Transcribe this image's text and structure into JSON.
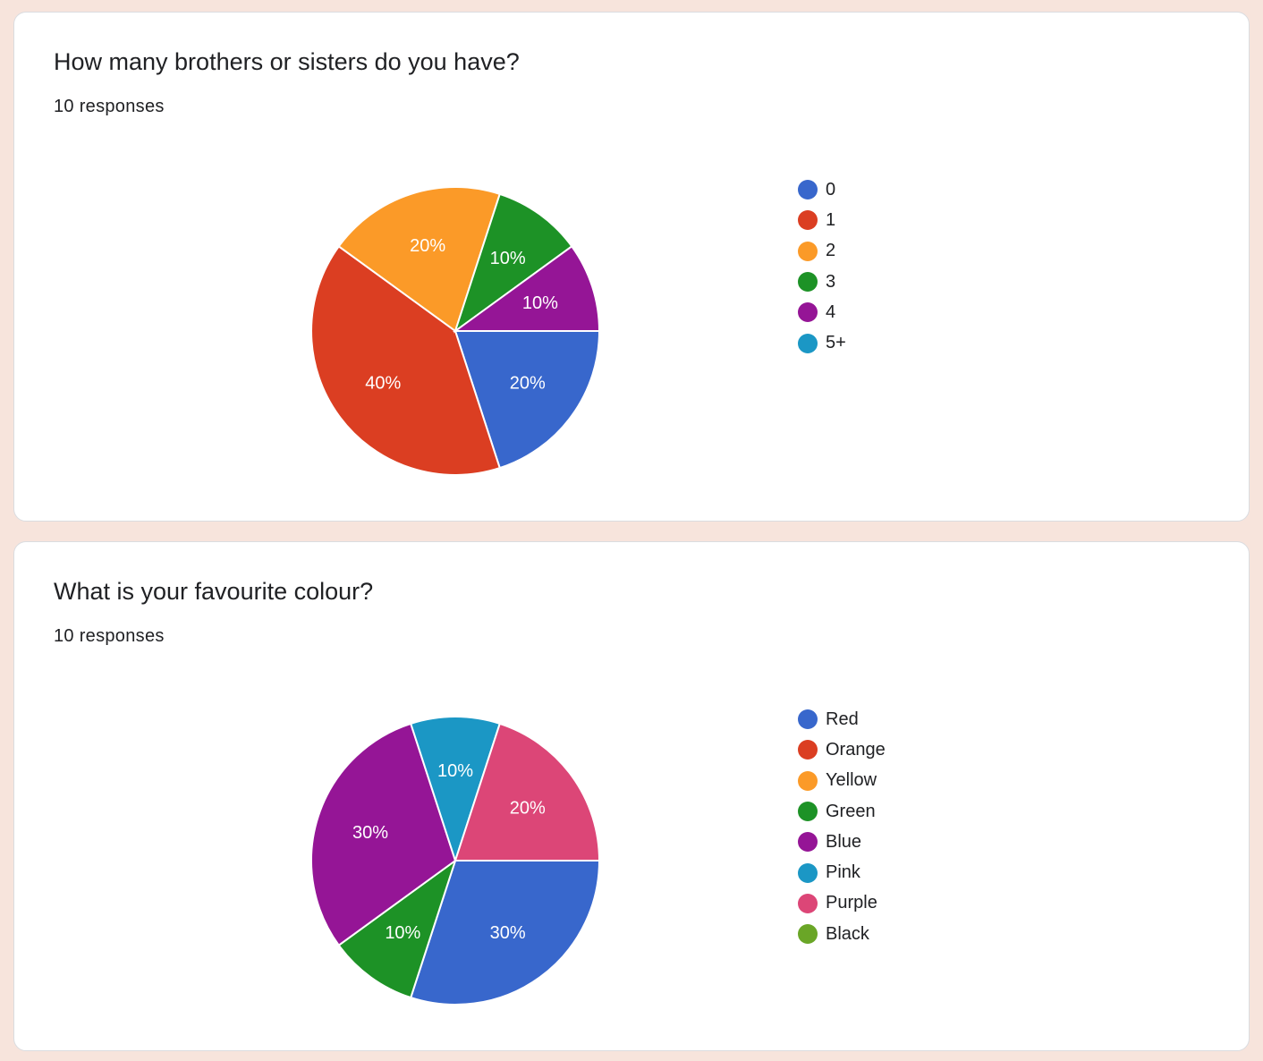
{
  "questions": [
    {
      "title": "How many brothers or sisters do you have?",
      "responses": "10 responses"
    },
    {
      "title": "What is your favourite colour?",
      "responses": "10 responses"
    }
  ],
  "chart_data": [
    {
      "type": "pie",
      "title": "How many brothers or sisters do you have?",
      "categories": [
        "0",
        "1",
        "2",
        "3",
        "4",
        "5+"
      ],
      "values": [
        20,
        40,
        20,
        10,
        10,
        0
      ],
      "labels": [
        "20%",
        "40%",
        "20%",
        "10%",
        "10%",
        ""
      ],
      "colors": [
        "#3867cc",
        "#db3e22",
        "#fb9a28",
        "#1d9226",
        "#951596",
        "#1b97c5"
      ],
      "legend": "right"
    },
    {
      "type": "pie",
      "title": "What is your favourite colour?",
      "categories": [
        "Red",
        "Orange",
        "Yellow",
        "Green",
        "Blue",
        "Pink",
        "Purple",
        "Black"
      ],
      "values": [
        30,
        0,
        0,
        10,
        30,
        10,
        20,
        0
      ],
      "labels": [
        "30%",
        "",
        "",
        "10%",
        "30%",
        "10%",
        "20%",
        ""
      ],
      "colors": [
        "#3867cc",
        "#db3e22",
        "#fb9a28",
        "#1d9226",
        "#951596",
        "#1b97c5",
        "#dc4677",
        "#6aa627"
      ],
      "legend": "right"
    }
  ]
}
